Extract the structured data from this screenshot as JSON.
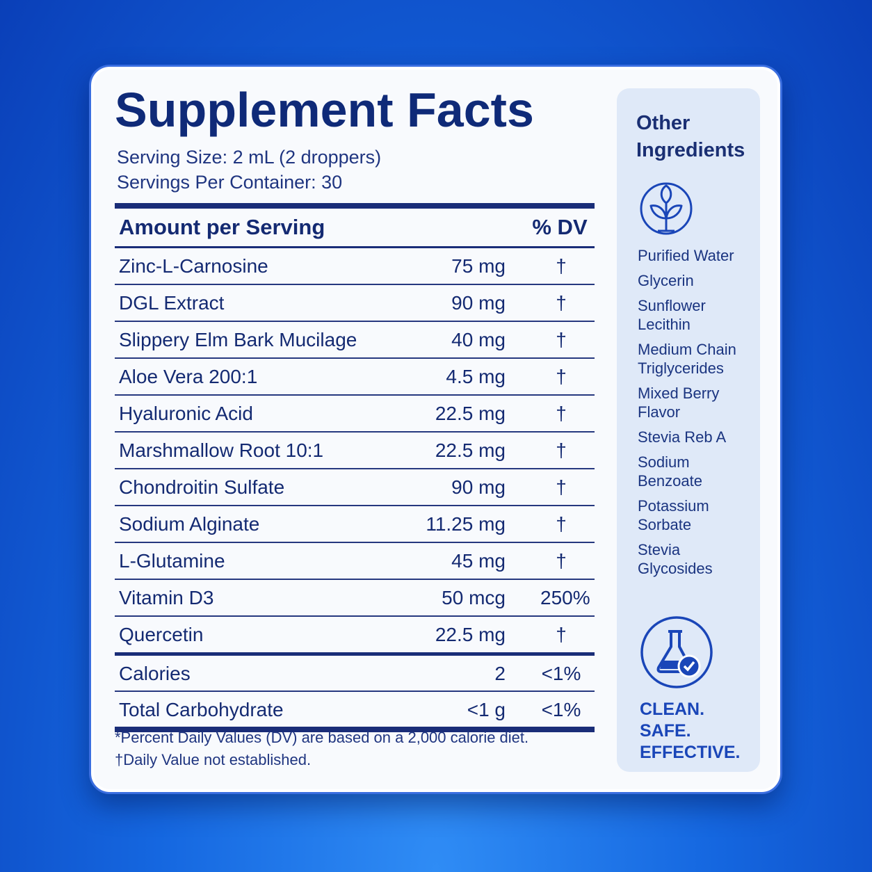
{
  "header": {
    "title": "Supplement Facts",
    "serving_size": "Serving Size: 2 mL (2 droppers)",
    "servings_per_container": "Servings Per Container: 30"
  },
  "table": {
    "header": [
      "Amount per Serving",
      "% DV"
    ],
    "rows": [
      [
        "Zinc-L-Carnosine",
        "75 mg",
        "†"
      ],
      [
        "DGL Extract",
        "90 mg",
        "†"
      ],
      [
        "Slippery Elm Bark Mucilage",
        "40 mg",
        "†"
      ],
      [
        "Aloe Vera 200:1",
        "4.5 mg",
        "†"
      ],
      [
        "Hyaluronic Acid",
        "22.5 mg",
        "†"
      ],
      [
        "Marshmallow Root 10:1",
        "22.5 mg",
        "†"
      ],
      [
        "Chondroitin Sulfate",
        "90 mg",
        "†"
      ],
      [
        "Sodium Alginate",
        "11.25 mg",
        "†"
      ],
      [
        "L-Glutamine",
        "45 mg",
        "†"
      ],
      [
        "Vitamin D3",
        "50 mcg",
        "250%"
      ],
      [
        "Quercetin",
        "22.5 mg",
        "†"
      ]
    ],
    "totals": [
      [
        "Calories",
        "2",
        "<1%"
      ],
      [
        "Total Carbohydrate",
        "<1 g",
        "<1%"
      ]
    ]
  },
  "footnotes": [
    "*Percent Daily Values (DV) are based on a 2,000 calorie diet.",
    "†Daily Value not established."
  ],
  "sidebar": {
    "title": "Other Ingredients",
    "ingredients": [
      "Purified Water",
      "Glycerin",
      "Sunflower Lecithin",
      "Medium Chain Triglycerides",
      "Mixed Berry Flavor",
      "Stevia Reb A",
      "Sodium Benzoate",
      "Potassium Sorbate",
      "Stevia Glycosides"
    ],
    "tagline": [
      "CLEAN.",
      "SAFE.",
      "EFFECTIVE."
    ]
  }
}
